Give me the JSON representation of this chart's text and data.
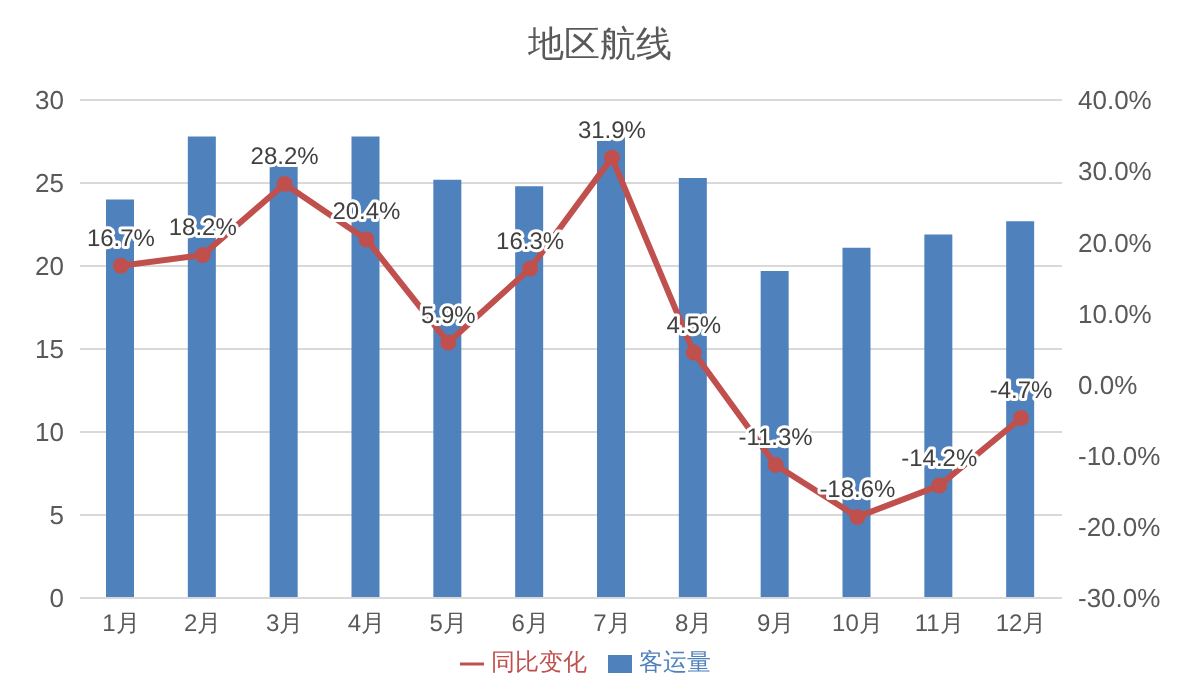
{
  "chart_data": {
    "type": "bar",
    "title": "地区航线",
    "categories": [
      "1月",
      "2月",
      "3月",
      "4月",
      "5月",
      "6月",
      "7月",
      "8月",
      "9月",
      "10月",
      "11月",
      "12月"
    ],
    "series": [
      {
        "name": "客运量",
        "color": "#4f81bd",
        "values": [
          24.0,
          27.8,
          26.4,
          27.8,
          25.2,
          24.8,
          28.0,
          25.3,
          19.7,
          21.1,
          21.9,
          22.7
        ]
      },
      {
        "name": "同比变化",
        "type": "line",
        "axis": "y2",
        "color": "#c0504d",
        "values": [
          16.7,
          18.2,
          28.2,
          20.4,
          5.9,
          16.3,
          31.9,
          4.5,
          -11.3,
          -18.6,
          -14.2,
          -4.7
        ],
        "value_labels": [
          "16.7%",
          "18.2%",
          "28.2%",
          "20.4%",
          "5.9%",
          "16.3%",
          "31.9%",
          "4.5%",
          "-11.3%",
          "-18.6%",
          "-14.2%",
          "-4.7%"
        ]
      }
    ],
    "ylim": [
      0,
      30
    ],
    "yticks": [
      0,
      5,
      10,
      15,
      20,
      25,
      30
    ],
    "y2lim": [
      -30,
      40
    ],
    "y2ticks": [
      {
        "value": -30,
        "label": "-30.0%"
      },
      {
        "value": -20,
        "label": "-20.0%"
      },
      {
        "value": -10,
        "label": "-10.0%"
      },
      {
        "value": 0,
        "label": "0.0%"
      },
      {
        "value": 10,
        "label": "10.0%"
      },
      {
        "value": 20,
        "label": "20.0%"
      },
      {
        "value": 30,
        "label": "30.0%"
      },
      {
        "value": 40,
        "label": "40.0%"
      }
    ],
    "grid": "y",
    "legend": "bottom",
    "marker": "circle",
    "line_style": "solid"
  }
}
